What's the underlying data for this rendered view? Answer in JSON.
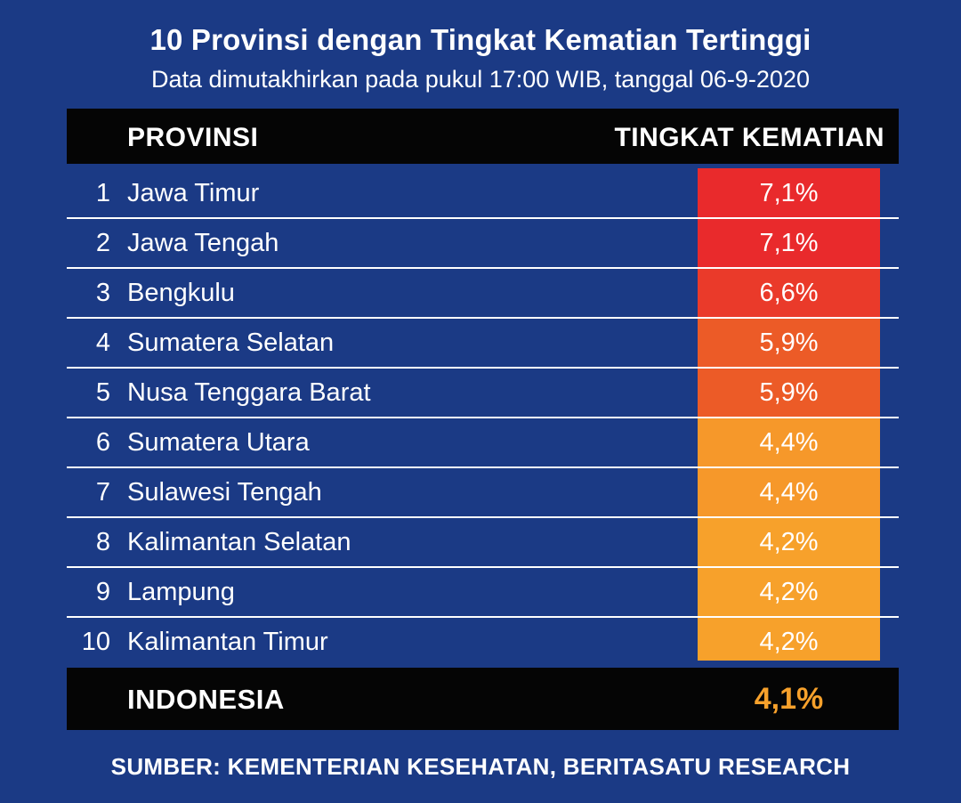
{
  "title": "10 Provinsi dengan Tingkat Kematian Tertinggi",
  "subtitle": "Data dimutakhirkan pada pukul 17:00 WIB, tanggal 06-9-2020",
  "header": {
    "col_province": "PROVINSI",
    "col_rate": "TINGKAT KEMATIAN"
  },
  "chart_data": {
    "type": "table",
    "columns": [
      "PROVINSI",
      "TINGKAT KEMATIAN"
    ],
    "rows": [
      {
        "rank": "1",
        "province": "Jawa Timur",
        "value": 7.1,
        "label": "7,1%",
        "color": "#e92a2c"
      },
      {
        "rank": "2",
        "province": "Jawa Tengah",
        "value": 7.1,
        "label": "7,1%",
        "color": "#e92a2c"
      },
      {
        "rank": "3",
        "province": "Bengkulu",
        "value": 6.6,
        "label": "6,6%",
        "color": "#ea3a2a"
      },
      {
        "rank": "4",
        "province": "Sumatera Selatan",
        "value": 5.9,
        "label": "5,9%",
        "color": "#ec5b27"
      },
      {
        "rank": "5",
        "province": "Nusa Tenggara Barat",
        "value": 5.9,
        "label": "5,9%",
        "color": "#ec5b27"
      },
      {
        "rank": "6",
        "province": "Sumatera Utara",
        "value": 4.4,
        "label": "4,4%",
        "color": "#f6982a"
      },
      {
        "rank": "7",
        "province": "Sulawesi Tengah",
        "value": 4.4,
        "label": "4,4%",
        "color": "#f6982a"
      },
      {
        "rank": "8",
        "province": "Kalimantan Selatan",
        "value": 4.2,
        "label": "4,2%",
        "color": "#f7a12b"
      },
      {
        "rank": "9",
        "province": "Lampung",
        "value": 4.2,
        "label": "4,2%",
        "color": "#f7a12b"
      },
      {
        "rank": "10",
        "province": "Kalimantan Timur",
        "value": 4.2,
        "label": "4,2%",
        "color": "#f7a12b"
      }
    ],
    "total": {
      "label": "INDONESIA",
      "value": 4.1,
      "value_label": "4,1%",
      "color": "#f7a12b"
    }
  },
  "source": "SUMBER: KEMENTERIAN KESEHATAN, BERITASATU RESEARCH"
}
